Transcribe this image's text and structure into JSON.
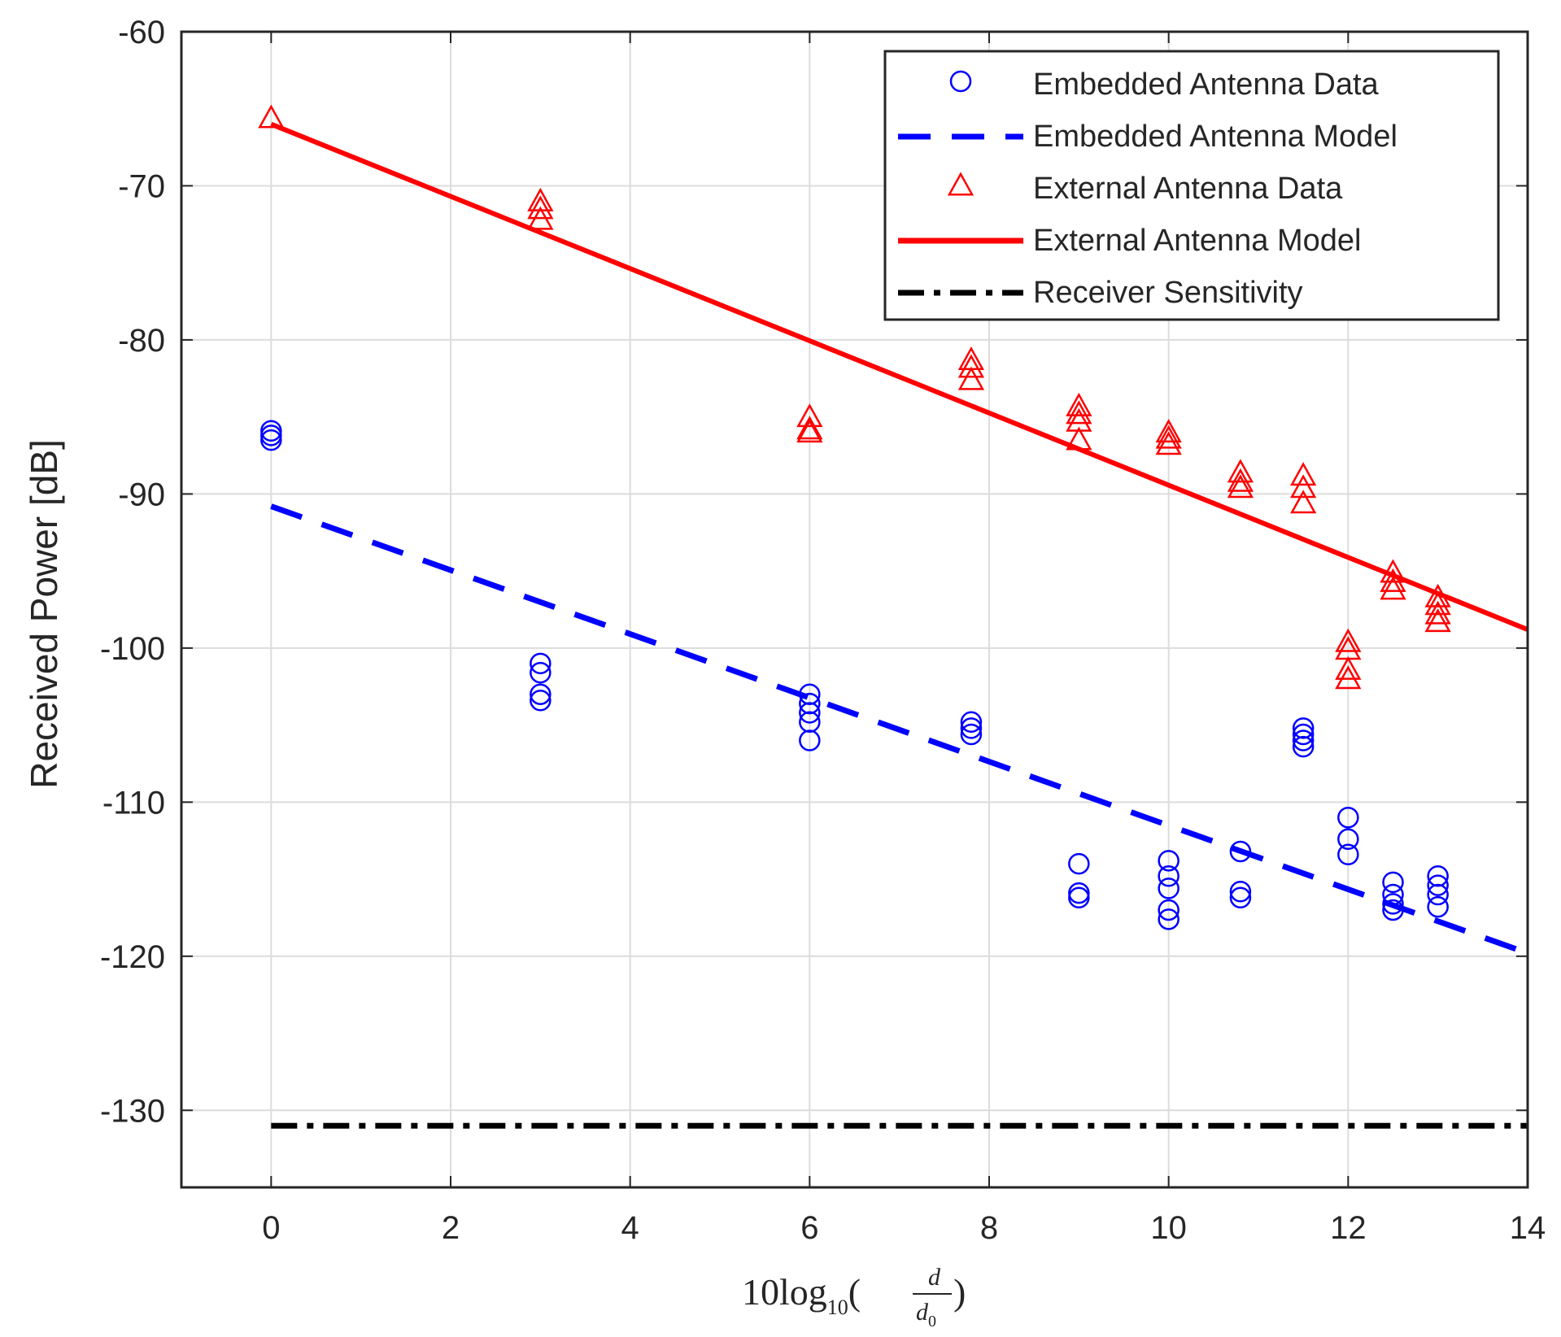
{
  "chart_data": {
    "type": "scatter",
    "title": "",
    "ylabel": "Received Power [dB]",
    "xlabel": {
      "prefix": "10log",
      "sub": "10",
      "open": "(",
      "num": "d",
      "den": "d",
      "den_sub": "0",
      "close": ")"
    },
    "xlim": [
      -1,
      14
    ],
    "ylim": [
      -135,
      -60
    ],
    "xticks": [
      0,
      2,
      4,
      6,
      8,
      10,
      12,
      14
    ],
    "yticks": [
      -60,
      -70,
      -80,
      -90,
      -100,
      -110,
      -120,
      -130
    ],
    "grid": true,
    "legend_position": "top-right",
    "series": [
      {
        "name": "Embedded Antenna Data",
        "kind": "markers",
        "marker": "circle",
        "color": "#0000ff",
        "points": [
          [
            0,
            -85.9
          ],
          [
            0,
            -86.2
          ],
          [
            0,
            -86.5
          ],
          [
            3,
            -101
          ],
          [
            3,
            -101.6
          ],
          [
            3,
            -103
          ],
          [
            3,
            -103.4
          ],
          [
            6,
            -103
          ],
          [
            6,
            -103.6
          ],
          [
            6,
            -104.2
          ],
          [
            6,
            -104.8
          ],
          [
            6,
            -106
          ],
          [
            7.8,
            -104.8
          ],
          [
            7.8,
            -105.2
          ],
          [
            7.8,
            -105.6
          ],
          [
            9,
            -114
          ],
          [
            9,
            -115.9
          ],
          [
            9,
            -116.2
          ],
          [
            10,
            -113.8
          ],
          [
            10,
            -114.8
          ],
          [
            10,
            -115.6
          ],
          [
            10,
            -117
          ],
          [
            10,
            -117.6
          ],
          [
            10.8,
            -113.2
          ],
          [
            10.8,
            -115.8
          ],
          [
            10.8,
            -116.2
          ],
          [
            11.5,
            -105.2
          ],
          [
            11.5,
            -105.6
          ],
          [
            11.5,
            -106
          ],
          [
            11.5,
            -106.4
          ],
          [
            12,
            -111
          ],
          [
            12,
            -112.4
          ],
          [
            12,
            -113.4
          ],
          [
            12.5,
            -115.2
          ],
          [
            12.5,
            -116
          ],
          [
            12.5,
            -116.6
          ],
          [
            12.5,
            -117
          ],
          [
            13,
            -114.8
          ],
          [
            13,
            -115.4
          ],
          [
            13,
            -116
          ],
          [
            13,
            -116.8
          ]
        ]
      },
      {
        "name": "Embedded Antenna Model",
        "kind": "line",
        "style": "dashed",
        "color": "#0000ff",
        "x": [
          0,
          14
        ],
        "y": [
          -90.8,
          -119.8
        ]
      },
      {
        "name": "External Antenna Data",
        "kind": "markers",
        "marker": "triangle",
        "color": "#ff0000",
        "points": [
          [
            0,
            -65.6
          ],
          [
            3,
            -71
          ],
          [
            3,
            -71.5
          ],
          [
            3,
            -72.2
          ],
          [
            6,
            -85
          ],
          [
            6,
            -85.8
          ],
          [
            6,
            -86
          ],
          [
            7.8,
            -81.3
          ],
          [
            7.8,
            -81.8
          ],
          [
            7.8,
            -82.6
          ],
          [
            9,
            -84.3
          ],
          [
            9,
            -84.8
          ],
          [
            9,
            -85.3
          ],
          [
            9,
            -86.5
          ],
          [
            10,
            -86
          ],
          [
            10,
            -86.4
          ],
          [
            10,
            -86.8
          ],
          [
            10.8,
            -88.6
          ],
          [
            10.8,
            -89.2
          ],
          [
            10.8,
            -89.6
          ],
          [
            11.5,
            -88.8
          ],
          [
            11.5,
            -89.6
          ],
          [
            11.5,
            -90.6
          ],
          [
            12,
            -99.6
          ],
          [
            12,
            -100.1
          ],
          [
            12,
            -101.4
          ],
          [
            12,
            -102
          ],
          [
            12.5,
            -95.1
          ],
          [
            12.5,
            -95.7
          ],
          [
            12.5,
            -96.2
          ],
          [
            13,
            -96.7
          ],
          [
            13,
            -97.2
          ],
          [
            13,
            -97.8
          ],
          [
            13,
            -98.3
          ]
        ]
      },
      {
        "name": "External Antenna Model",
        "kind": "line",
        "style": "solid",
        "color": "#ff0000",
        "x": [
          0,
          14
        ],
        "y": [
          -66,
          -98.8
        ]
      },
      {
        "name": "Receiver Sensitivity",
        "kind": "line",
        "style": "dashdot",
        "color": "#000000",
        "x": [
          0,
          14
        ],
        "y": [
          -131,
          -131
        ]
      }
    ]
  }
}
